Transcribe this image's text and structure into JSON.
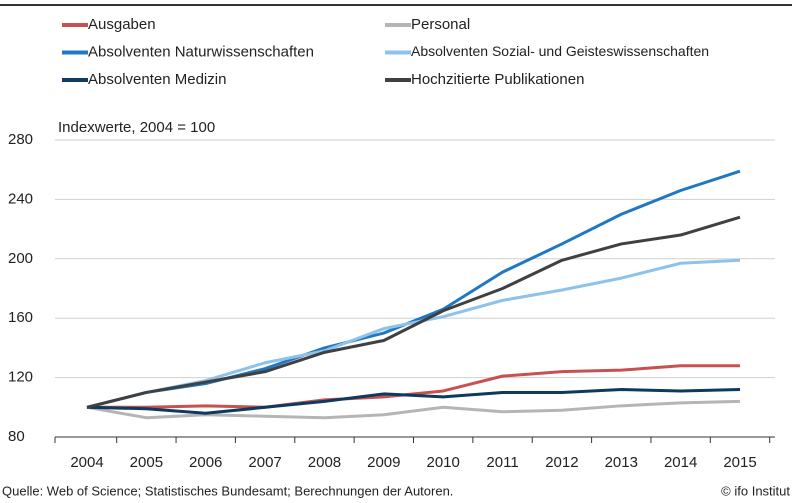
{
  "chart_data": {
    "type": "line",
    "y_axis_label": "Indexwerte, 2004 = 100",
    "source": "Quelle: Web of Science; Statistisches Bundesamt; Berechnungen der Autoren.",
    "credit": "© ifo Institut",
    "categories": [
      "2004",
      "2005",
      "2006",
      "2007",
      "2008",
      "2009",
      "2010",
      "2011",
      "2012",
      "2013",
      "2014",
      "2015"
    ],
    "series": [
      {
        "name": "Ausgaben",
        "color": "#c8504f",
        "values": [
          100,
          100,
          101,
          100,
          105,
          107,
          111,
          121,
          124,
          125,
          128,
          128
        ]
      },
      {
        "name": "Personal",
        "color": "#b5b5b5",
        "values": [
          100,
          93,
          95,
          94,
          93,
          95,
          100,
          97,
          98,
          101,
          103,
          104
        ]
      },
      {
        "name": "Absolventen Naturwissenschaften",
        "color": "#1f78c1",
        "values": [
          100,
          110,
          116,
          126,
          140,
          150,
          166,
          191,
          210,
          230,
          246,
          259
        ]
      },
      {
        "name": "Absolventen Sozial- und Geisteswissenschaften",
        "color": "#8ec2ea",
        "values": [
          100,
          110,
          118,
          130,
          138,
          153,
          161,
          172,
          179,
          187,
          197,
          199
        ]
      },
      {
        "name": "Absolventen Medizin",
        "color": "#0d3a5e",
        "values": [
          100,
          99,
          96,
          100,
          104,
          109,
          107,
          110,
          110,
          112,
          111,
          112
        ]
      },
      {
        "name": "Hochzitierte Publikationen",
        "color": "#404040",
        "values": [
          100,
          110,
          117,
          124,
          137,
          145,
          165,
          180,
          199,
          210,
          216,
          228
        ]
      }
    ],
    "ylim": [
      80,
      280
    ],
    "yticks": [
      80,
      120,
      160,
      200,
      240,
      280
    ],
    "grid": true
  }
}
